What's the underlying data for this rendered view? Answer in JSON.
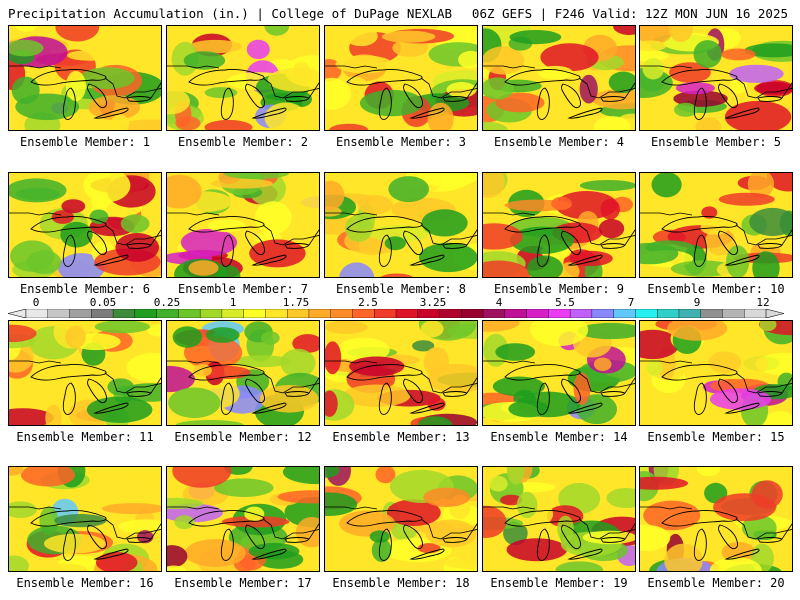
{
  "header": {
    "title": "Precipitation Accumulation (in.) | College of DuPage NEXLAB",
    "run_info": "06Z GEFS | F246 Valid: 12Z MON JUN 16 2025"
  },
  "colorbar": {
    "tick_labels": [
      "0",
      "0.05",
      "0.25",
      "1",
      "1.75",
      "2.5",
      "3.25",
      "4",
      "5.5",
      "7",
      "9",
      "12"
    ],
    "colors": [
      "#e8e8e8",
      "#c6c6c6",
      "#a0a0a0",
      "#7c7c7c",
      "#3c8c3c",
      "#1f9e1f",
      "#41b02a",
      "#6cc62a",
      "#a2d82a",
      "#d8ec2a",
      "#ffff28",
      "#ffe628",
      "#ffc828",
      "#ffaa28",
      "#ff8a28",
      "#ff6428",
      "#f03c28",
      "#e01428",
      "#c8002a",
      "#b0002c",
      "#980030",
      "#a01060",
      "#c01098",
      "#d820c8",
      "#ea3cf0",
      "#c060f8",
      "#8888ff",
      "#60c8ff",
      "#28f0f0",
      "#30d0c8",
      "#40b0b0",
      "#909090",
      "#b4b4b4",
      "#d8d8d8"
    ]
  },
  "members": [
    {
      "label": "Ensemble Member: 1"
    },
    {
      "label": "Ensemble Member: 2"
    },
    {
      "label": "Ensemble Member: 3"
    },
    {
      "label": "Ensemble Member: 4"
    },
    {
      "label": "Ensemble Member: 5"
    },
    {
      "label": "Ensemble Member: 6"
    },
    {
      "label": "Ensemble Member: 7"
    },
    {
      "label": "Ensemble Member: 8"
    },
    {
      "label": "Ensemble Member: 9"
    },
    {
      "label": "Ensemble Member: 10"
    },
    {
      "label": "Ensemble Member: 11"
    },
    {
      "label": "Ensemble Member: 12"
    },
    {
      "label": "Ensemble Member: 13"
    },
    {
      "label": "Ensemble Member: 14"
    },
    {
      "label": "Ensemble Member: 15"
    },
    {
      "label": "Ensemble Member: 16"
    },
    {
      "label": "Ensemble Member: 17"
    },
    {
      "label": "Ensemble Member: 18"
    },
    {
      "label": "Ensemble Member: 19"
    },
    {
      "label": "Ensemble Member: 20"
    }
  ]
}
